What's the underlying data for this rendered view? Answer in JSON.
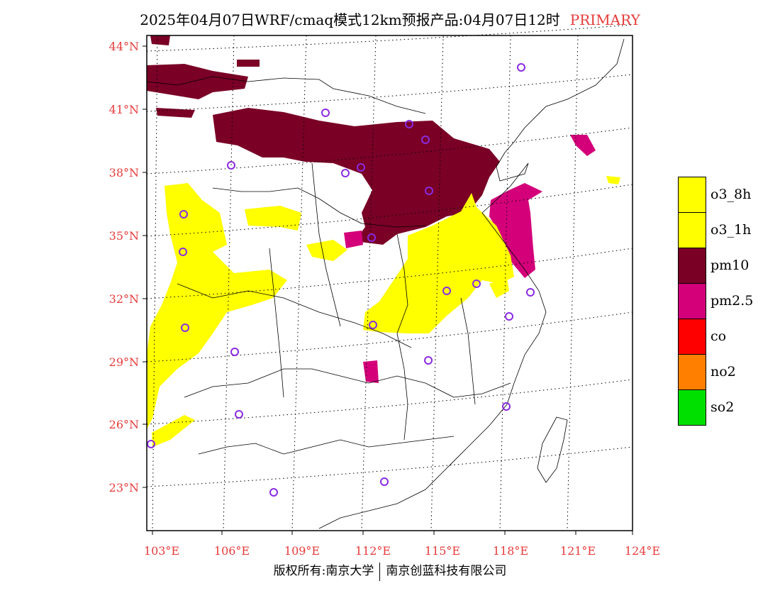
{
  "header": {
    "title": "2025年04月07日WRF/cmaq模式12km预报产品:04月07日12时",
    "tag": "PRIMARY"
  },
  "footer": {
    "copyright": "版权所有:南京大学",
    "company": "南京创蓝科技有限公司"
  },
  "axes": {
    "lat_labels": [
      "44°N",
      "41°N",
      "38°N",
      "35°N",
      "32°N",
      "29°N",
      "26°N",
      "23°N"
    ],
    "lon_labels": [
      "103°E",
      "106°E",
      "109°E",
      "112°E",
      "115°E",
      "118°E",
      "121°E",
      "124°E"
    ]
  },
  "legend": [
    {
      "label": "o3_8h",
      "color": "#ffff00"
    },
    {
      "label": "o3_1h",
      "color": "#ffff00"
    },
    {
      "label": "pm10",
      "color": "#7a0026"
    },
    {
      "label": "pm2.5",
      "color": "#d4007a"
    },
    {
      "label": "co",
      "color": "#ff0000"
    },
    {
      "label": "no2",
      "color": "#ff8000"
    },
    {
      "label": "so2",
      "color": "#00e000"
    }
  ],
  "colors": {
    "tick_label": "#e53b3b",
    "station_marker": "#8a2be2"
  }
}
